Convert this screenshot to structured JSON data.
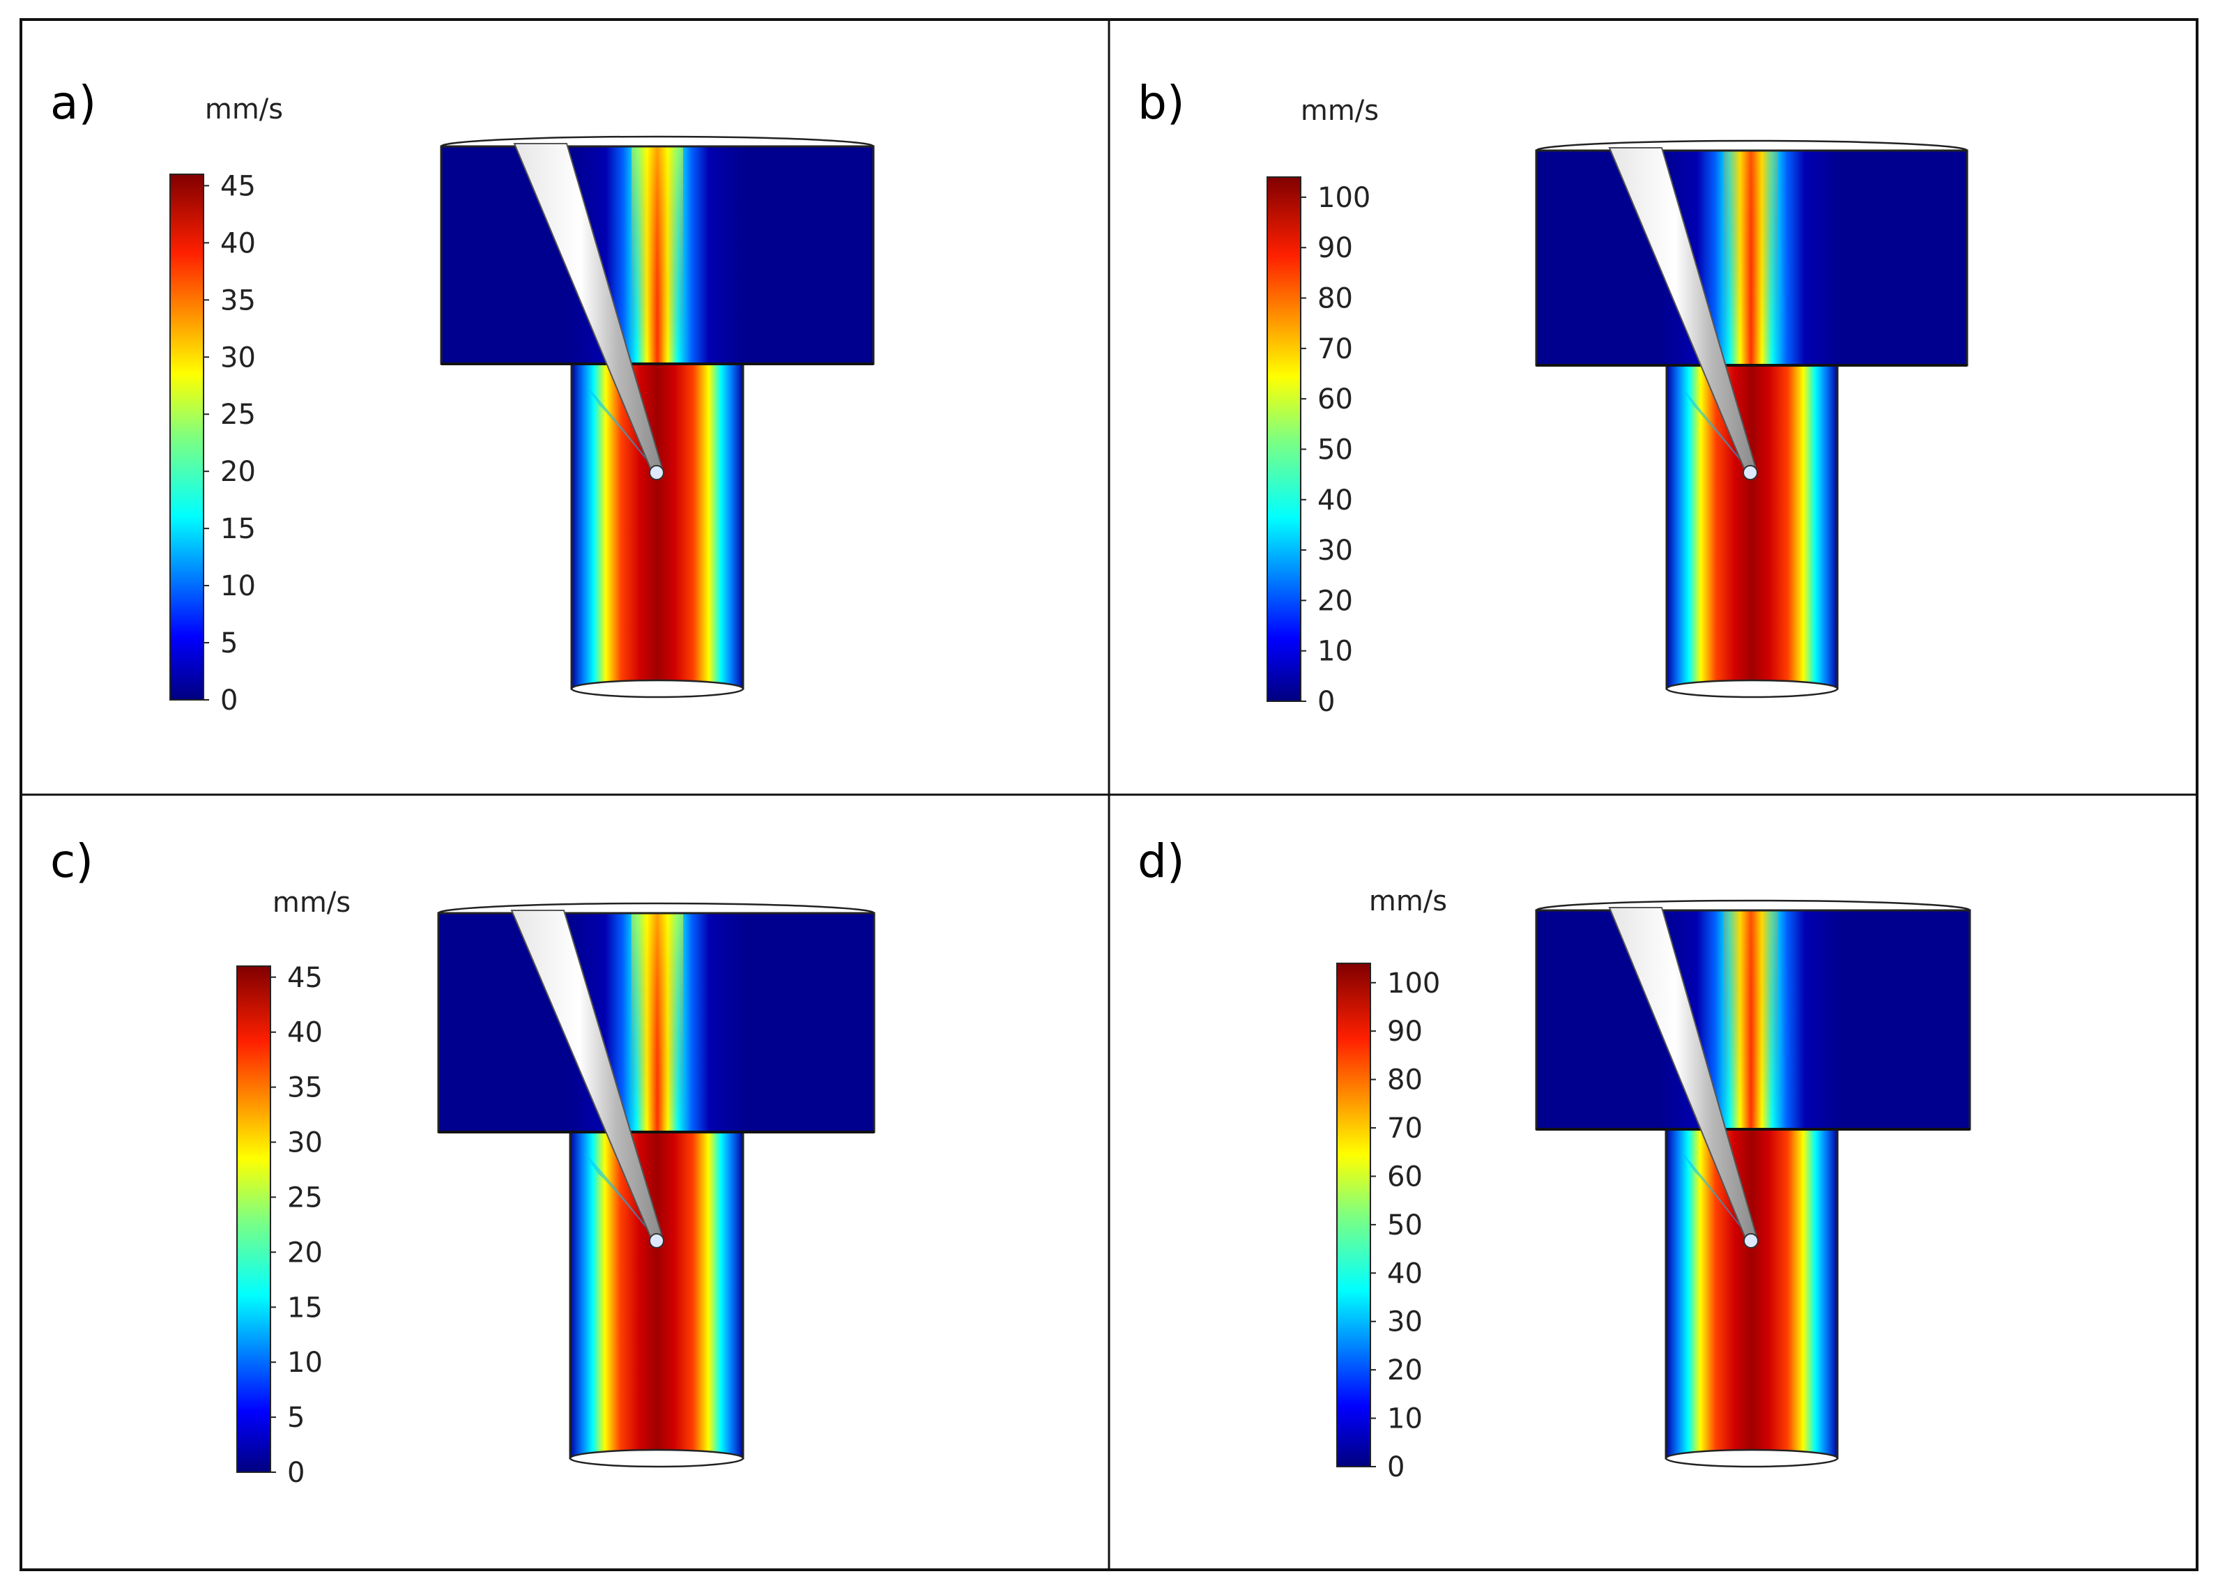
{
  "panels": [
    {
      "id": "a",
      "label": "a)",
      "unit": "mm/s",
      "colorbar_ticks": [
        "0",
        "5",
        "10",
        "15",
        "20",
        "25",
        "30",
        "35",
        "40",
        "45"
      ],
      "max_value": 46
    },
    {
      "id": "b",
      "label": "b)",
      "unit": "mm/s",
      "colorbar_ticks": [
        "0",
        "10",
        "20",
        "30",
        "40",
        "50",
        "60",
        "70",
        "80",
        "90",
        "100"
      ],
      "max_value": 104
    },
    {
      "id": "c",
      "label": "c)",
      "unit": "mm/s",
      "colorbar_ticks": [
        "0",
        "5",
        "10",
        "15",
        "20",
        "25",
        "30",
        "35",
        "40",
        "45"
      ],
      "max_value": 46
    },
    {
      "id": "d",
      "label": "d)",
      "unit": "mm/s",
      "colorbar_ticks": [
        "0",
        "10",
        "20",
        "30",
        "40",
        "50",
        "60",
        "70",
        "80",
        "90",
        "100"
      ],
      "max_value": 104
    }
  ],
  "colormap": [
    "#00007f",
    "#0000ff",
    "#007fff",
    "#00ffff",
    "#7fff7f",
    "#ffff00",
    "#ff7f00",
    "#ff0000",
    "#7f0000"
  ]
}
